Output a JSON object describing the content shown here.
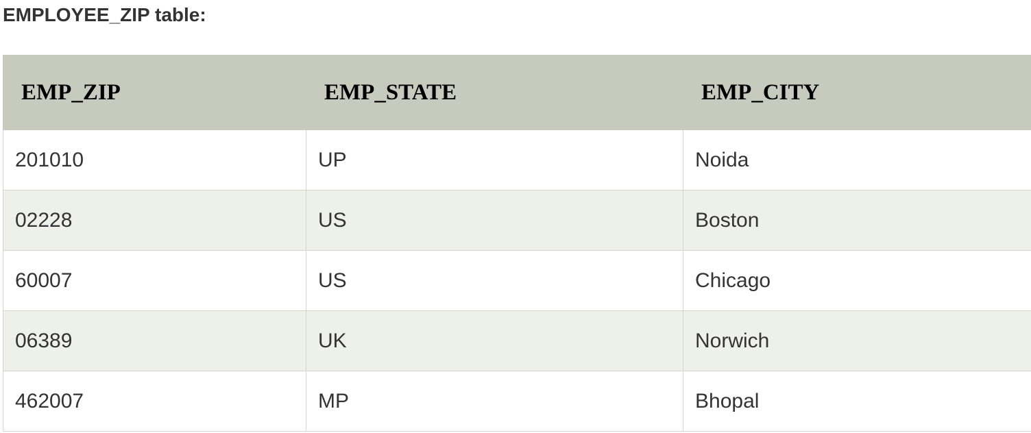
{
  "caption": "EMPLOYEE_ZIP table:",
  "table": {
    "headers": [
      "EMP_ZIP",
      "EMP_STATE",
      "EMP_CITY"
    ],
    "rows": [
      [
        "201010",
        "UP",
        "Noida"
      ],
      [
        "02228",
        "US",
        "Boston"
      ],
      [
        "60007",
        "US",
        "Chicago"
      ],
      [
        "06389",
        "UK",
        "Norwich"
      ],
      [
        "462007",
        "MP",
        "Bhopal"
      ]
    ]
  },
  "colors": {
    "header_bg": "#c7cbbe",
    "row_alt_bg": "#eef0ea",
    "border": "#d3d6cf",
    "text": "#333333"
  }
}
